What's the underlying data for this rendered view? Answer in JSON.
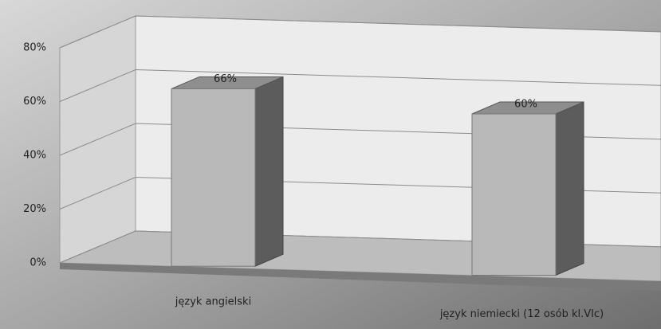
{
  "chart_data": {
    "type": "bar3d",
    "categories": [
      "język angielski",
      "język niemiecki (12 osób kl.VIc)"
    ],
    "values": [
      66,
      60
    ],
    "value_labels": [
      "66%",
      "60%"
    ],
    "color": "#b9b9b9",
    "ylim": [
      0,
      80
    ],
    "yticks": [
      {
        "value": 0,
        "label": "0%"
      },
      {
        "value": 20,
        "label": "20%"
      },
      {
        "value": 40,
        "label": "40%"
      },
      {
        "value": 60,
        "label": "60%"
      },
      {
        "value": 80,
        "label": "80%"
      }
    ],
    "grid": true
  }
}
